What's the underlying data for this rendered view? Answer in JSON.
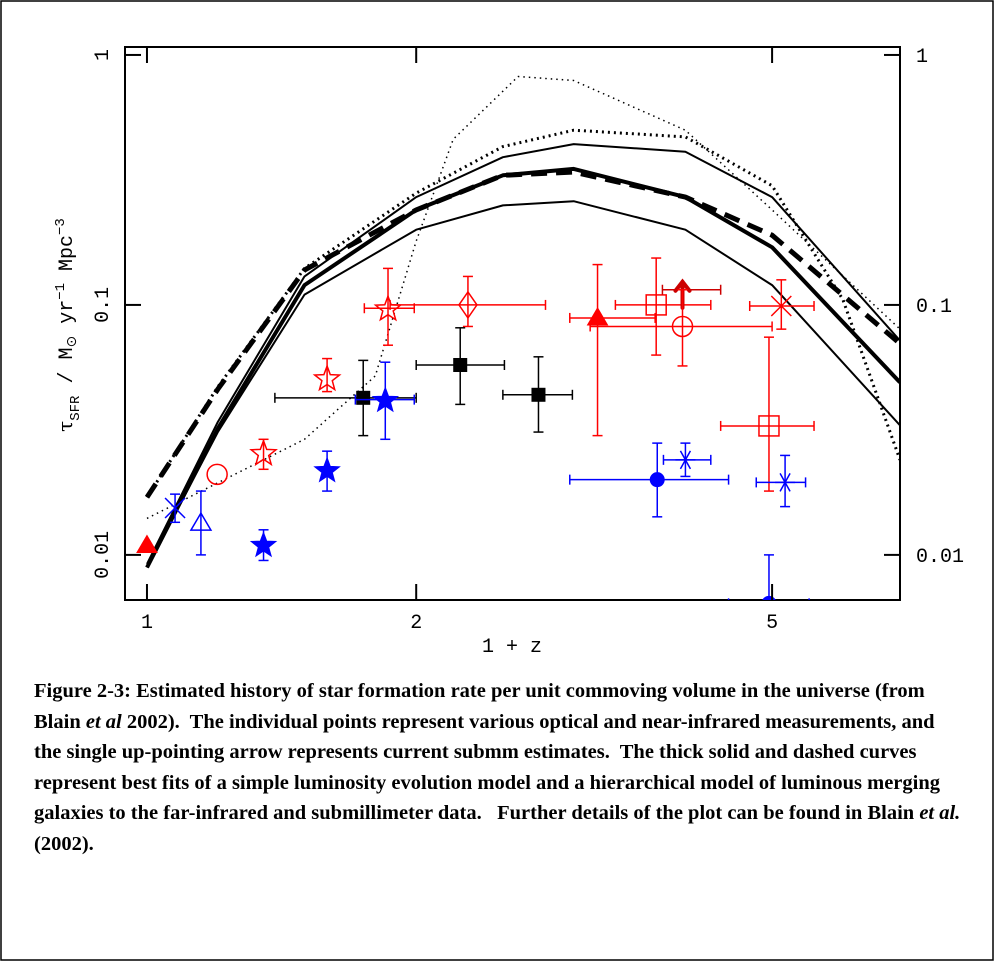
{
  "chart_data": {
    "type": "line",
    "xlabel": "1 + z",
    "ylabel": [
      "τ",
      "SFR",
      " / M",
      "⊙",
      " yr",
      "−1",
      " Mpc",
      "−3"
    ],
    "xscale": "log",
    "yscale": "log",
    "xlim": [
      0.945,
      6.95
    ],
    "ylim": [
      0.0066,
      1.076
    ],
    "xticks": [
      1,
      2,
      5
    ],
    "yticks": [
      0.01,
      0.1,
      1
    ],
    "y2lim": [
      0.0066,
      1.076
    ],
    "y2ticks": [
      0.01,
      0.1,
      1
    ],
    "series": [
      {
        "style": "thick-solid",
        "color": "#000000",
        "x": [
          1,
          1.2,
          1.5,
          2,
          2.5,
          3,
          4,
          5,
          6.95
        ],
        "values": [
          0.0089,
          0.032,
          0.12,
          0.24,
          0.33,
          0.35,
          0.27,
          0.17,
          0.049
        ]
      },
      {
        "style": "thin-solid",
        "color": "#000000",
        "x": [
          1,
          1.2,
          1.5,
          2,
          2.5,
          3,
          4,
          5,
          6.95
        ],
        "values": [
          0.0092,
          0.034,
          0.13,
          0.27,
          0.39,
          0.44,
          0.41,
          0.27,
          0.072
        ]
      },
      {
        "style": "thin-solid",
        "color": "#000000",
        "x": [
          1,
          1.2,
          1.5,
          2,
          2.5,
          3,
          4,
          5,
          6.95
        ],
        "values": [
          0.0089,
          0.031,
          0.11,
          0.2,
          0.25,
          0.26,
          0.2,
          0.12,
          0.033
        ]
      },
      {
        "style": "thick-dashed",
        "color": "#000000",
        "x": [
          1,
          1.2,
          1.5,
          2,
          2.5,
          3,
          4,
          5,
          6.95
        ],
        "values": [
          0.017,
          0.046,
          0.138,
          0.24,
          0.33,
          0.34,
          0.27,
          0.19,
          0.07
        ]
      },
      {
        "style": "dotted",
        "color": "#000000",
        "x": [
          1,
          1.2,
          1.5,
          2,
          2.5,
          3,
          4,
          5,
          6,
          6.95
        ],
        "values": [
          0.017,
          0.047,
          0.14,
          0.28,
          0.43,
          0.5,
          0.47,
          0.3,
          0.105,
          0.024
        ]
      },
      {
        "style": "thin-dotted",
        "color": "#000000",
        "x": [
          1,
          1.5,
          1.8,
          2,
          2.2,
          2.6,
          3,
          4,
          5,
          6.95
        ],
        "values": [
          0.014,
          0.029,
          0.052,
          0.18,
          0.46,
          0.82,
          0.79,
          0.5,
          0.24,
          0.08
        ]
      }
    ],
    "points": [
      {
        "marker": "triangle",
        "color": "#ff0000",
        "x": 1.0,
        "y": 0.0109
      },
      {
        "marker": "cross",
        "color": "#0000ff",
        "x": 1.075,
        "y": 0.0154,
        "ylo": 0.0135,
        "yhi": 0.0175
      },
      {
        "marker": "triangle-open",
        "color": "#0000ff",
        "x": 1.149,
        "y": 0.0134,
        "ylo": 0.01,
        "yhi": 0.018
      },
      {
        "marker": "circle-open",
        "color": "#ff0000",
        "x": 1.198,
        "y": 0.021
      },
      {
        "marker": "star-open",
        "color": "#ff0000",
        "x": 1.35,
        "y": 0.0256,
        "ylo": 0.022,
        "yhi": 0.029
      },
      {
        "marker": "star",
        "color": "#0000ff",
        "x": 1.35,
        "y": 0.011,
        "ylo": 0.0095,
        "yhi": 0.0126
      },
      {
        "marker": "star-open",
        "color": "#ff0000",
        "x": 1.59,
        "y": 0.051,
        "ylo": 0.045,
        "yhi": 0.061
      },
      {
        "marker": "star",
        "color": "#0000ff",
        "x": 1.59,
        "y": 0.0219,
        "ylo": 0.018,
        "yhi": 0.026
      },
      {
        "marker": "square",
        "color": "#000000",
        "x": 1.745,
        "y": 0.0425,
        "xlo": 1.39,
        "xhi": 2.0,
        "ylo": 0.03,
        "yhi": 0.06
      },
      {
        "marker": "star",
        "color": "#0000ff",
        "x": 1.847,
        "y": 0.0418,
        "xlo": 1.71,
        "xhi": 1.99,
        "ylo": 0.029,
        "yhi": 0.059
      },
      {
        "marker": "star-open",
        "color": "#ff0000",
        "x": 1.86,
        "y": 0.097,
        "xlo": 1.75,
        "xhi": 1.99,
        "ylo": 0.069,
        "yhi": 0.14
      },
      {
        "marker": "diamond-open",
        "color": "#ff0000",
        "x": 2.285,
        "y": 0.1,
        "xlo": 1.87,
        "xhi": 2.79,
        "ylo": 0.082,
        "yhi": 0.13
      },
      {
        "marker": "square",
        "color": "#000000",
        "x": 2.24,
        "y": 0.0575,
        "xlo": 2.0,
        "xhi": 2.51,
        "ylo": 0.04,
        "yhi": 0.081
      },
      {
        "marker": "square",
        "color": "#000000",
        "x": 2.74,
        "y": 0.0437,
        "xlo": 2.5,
        "xhi": 2.99,
        "ylo": 0.031,
        "yhi": 0.062
      },
      {
        "marker": "triangle",
        "color": "#ff0000",
        "x": 3.19,
        "y": 0.0887,
        "xlo": 2.97,
        "xhi": 3.7,
        "ylo": 0.03,
        "yhi": 0.145
      },
      {
        "marker": "square-open",
        "color": "#ff0000",
        "x": 3.71,
        "y": 0.1,
        "xlo": 3.34,
        "xhi": 4.27,
        "ylo": 0.063,
        "yhi": 0.154
      },
      {
        "marker": "arrow",
        "color": "#cc0000",
        "x": 3.97,
        "y": 0.115,
        "xlo": 3.77,
        "xhi": 4.38
      },
      {
        "marker": "circle-open",
        "color": "#ff0000",
        "x": 3.97,
        "y": 0.082,
        "xlo": 3.13,
        "xhi": 5.0,
        "ylo": 0.057,
        "yhi": 0.115
      },
      {
        "marker": "cross",
        "color": "#ff0000",
        "x": 5.12,
        "y": 0.099,
        "xlo": 4.72,
        "xhi": 5.57,
        "ylo": 0.08,
        "yhi": 0.126
      },
      {
        "marker": "square-open",
        "color": "#ff0000",
        "x": 4.96,
        "y": 0.0328,
        "xlo": 4.38,
        "xhi": 5.57,
        "ylo": 0.018,
        "yhi": 0.0743
      },
      {
        "marker": "circle",
        "color": "#0000ff",
        "x": 3.72,
        "y": 0.02,
        "xlo": 2.97,
        "xhi": 4.47,
        "ylo": 0.0142,
        "yhi": 0.028
      },
      {
        "marker": "asterisk",
        "color": "#0000ff",
        "x": 4.0,
        "y": 0.024,
        "xlo": 3.78,
        "xhi": 4.27,
        "ylo": 0.0206,
        "yhi": 0.028
      },
      {
        "marker": "asterisk",
        "color": "#0000ff",
        "x": 5.17,
        "y": 0.0195,
        "xlo": 4.8,
        "xhi": 5.45,
        "ylo": 0.0156,
        "yhi": 0.025
      },
      {
        "marker": "circle",
        "color": "#0000ff",
        "x": 4.96,
        "y": 0.0064,
        "xlo": 4.47,
        "xhi": 5.5,
        "yhi": 0.01
      }
    ],
    "caption": [
      "Figure 2-3: Estimated history of star formation rate per unit commoving volume in the universe (from Blain ",
      "et al",
      " 2002).  The individual points represent various optical and near-infrared measurements, and the single up-pointing arrow represents current submm estimates.  The thick solid and dashed curves represent best fits of a simple luminosity evolution model and a hierarchical model of luminous merging galaxies to the far-infrared and submillimeter data.   Further details of the plot can be found in Blain ",
      "et al.",
      " (2002)."
    ]
  }
}
